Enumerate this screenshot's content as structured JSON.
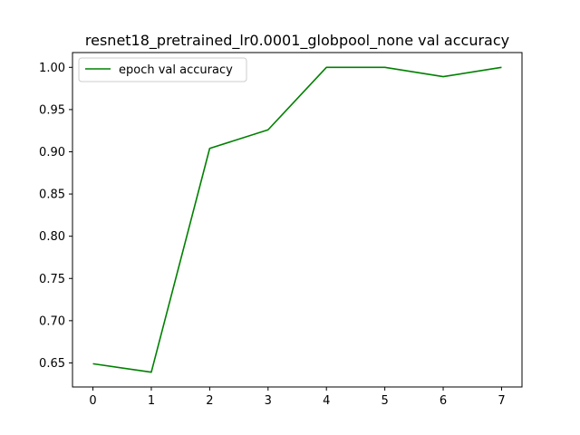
{
  "chart_data": {
    "type": "line",
    "title": "resnet18_pretrained_lr0.0001_globpool_none val accuracy",
    "xlabel": "",
    "ylabel": "",
    "x": [
      0,
      1,
      2,
      3,
      4,
      5,
      6,
      7
    ],
    "series": [
      {
        "name": "epoch val accuracy",
        "color": "#008000",
        "values": [
          0.649,
          0.639,
          0.904,
          0.926,
          1.0,
          1.0,
          0.989,
          1.0
        ]
      }
    ],
    "xlim": [
      -0.35,
      7.35
    ],
    "ylim": [
      0.6215,
      1.0175
    ],
    "xticks": [
      "0",
      "1",
      "2",
      "3",
      "4",
      "5",
      "6",
      "7"
    ],
    "yticks": [
      "0.65",
      "0.70",
      "0.75",
      "0.80",
      "0.85",
      "0.90",
      "0.95",
      "1.00"
    ],
    "grid": false,
    "legend_position": "top-left"
  }
}
